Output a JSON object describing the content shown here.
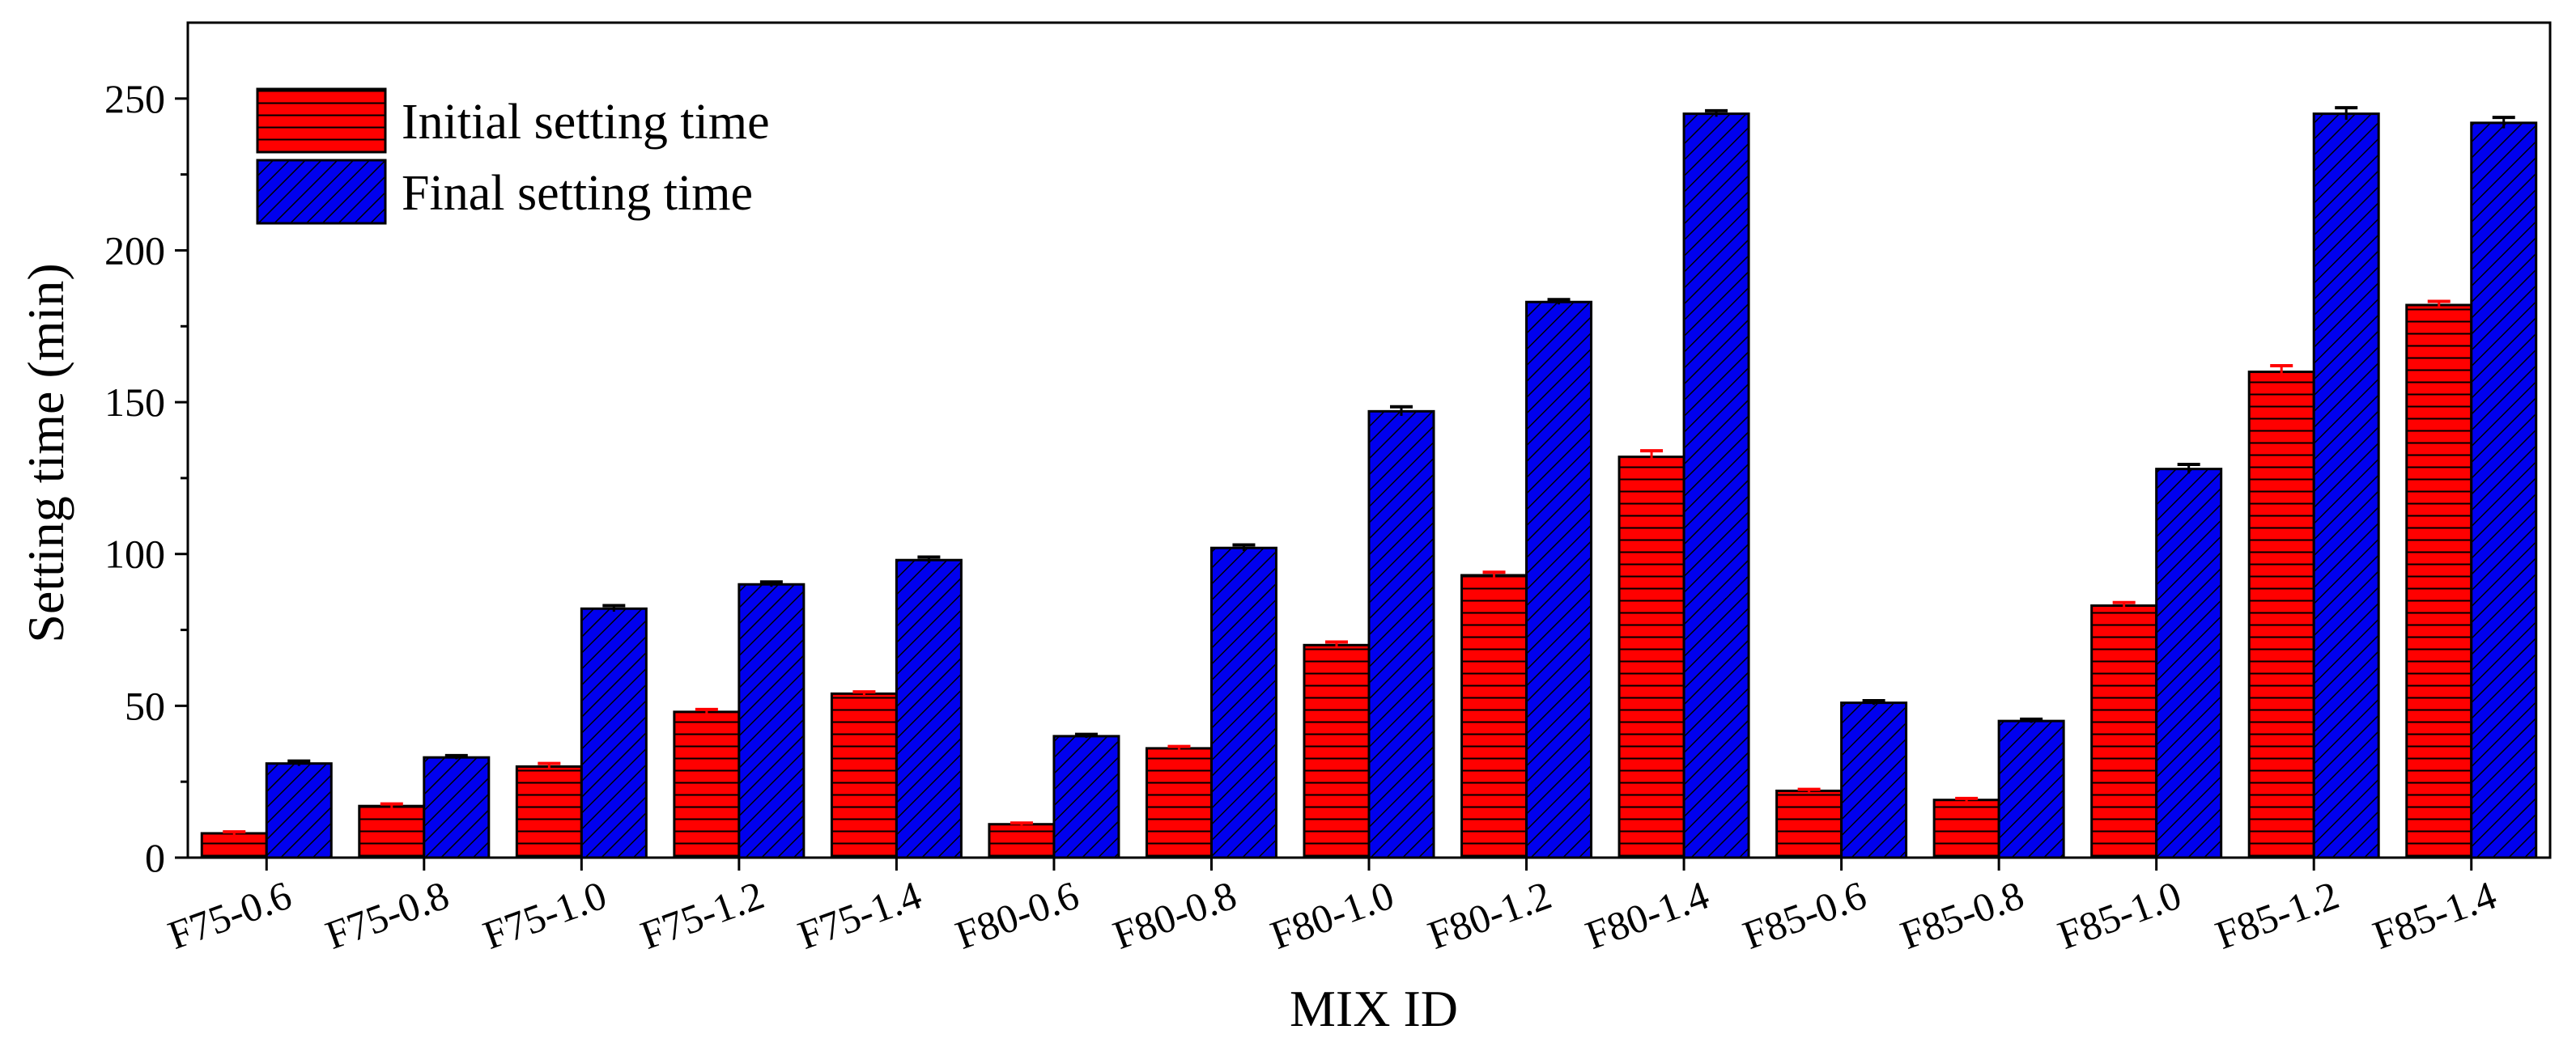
{
  "chart_data": {
    "type": "bar",
    "title": "",
    "xlabel": "MIX ID",
    "ylabel": "Setting time (min)",
    "ylim": [
      0,
      275
    ],
    "yticks": [
      0,
      50,
      100,
      150,
      200,
      250
    ],
    "grid": false,
    "legend_position": "top-left",
    "categories": [
      "F75-0.6",
      "F75-0.8",
      "F75-1.0",
      "F75-1.2",
      "F75-1.4",
      "F80-0.6",
      "F80-0.8",
      "F80-1.0",
      "F80-1.2",
      "F80-1.4",
      "F85-0.6",
      "F85-0.8",
      "F85-1.0",
      "F85-1.2",
      "F85-1.4"
    ],
    "series": [
      {
        "name": "Initial setting time",
        "color": "#ff0000",
        "pattern": "horizontal-lines",
        "values": [
          8,
          17,
          30,
          48,
          54,
          11,
          36,
          70,
          93,
          132,
          22,
          19,
          83,
          160,
          182
        ],
        "errors": [
          0.5,
          0.7,
          1,
          0.8,
          0.6,
          0.4,
          0.6,
          1,
          1,
          2,
          0.5,
          0.5,
          1,
          2,
          1.2
        ]
      },
      {
        "name": "Final setting time",
        "color": "#0000ee",
        "pattern": "diagonal-lines",
        "values": [
          31,
          33,
          82,
          90,
          98,
          40,
          102,
          147,
          183,
          245,
          51,
          45,
          128,
          245,
          242
        ],
        "errors": [
          0.8,
          0.6,
          1,
          0.8,
          1,
          0.6,
          1,
          1.5,
          0.8,
          1,
          0.7,
          0.6,
          1.5,
          2,
          1.8
        ]
      }
    ]
  }
}
